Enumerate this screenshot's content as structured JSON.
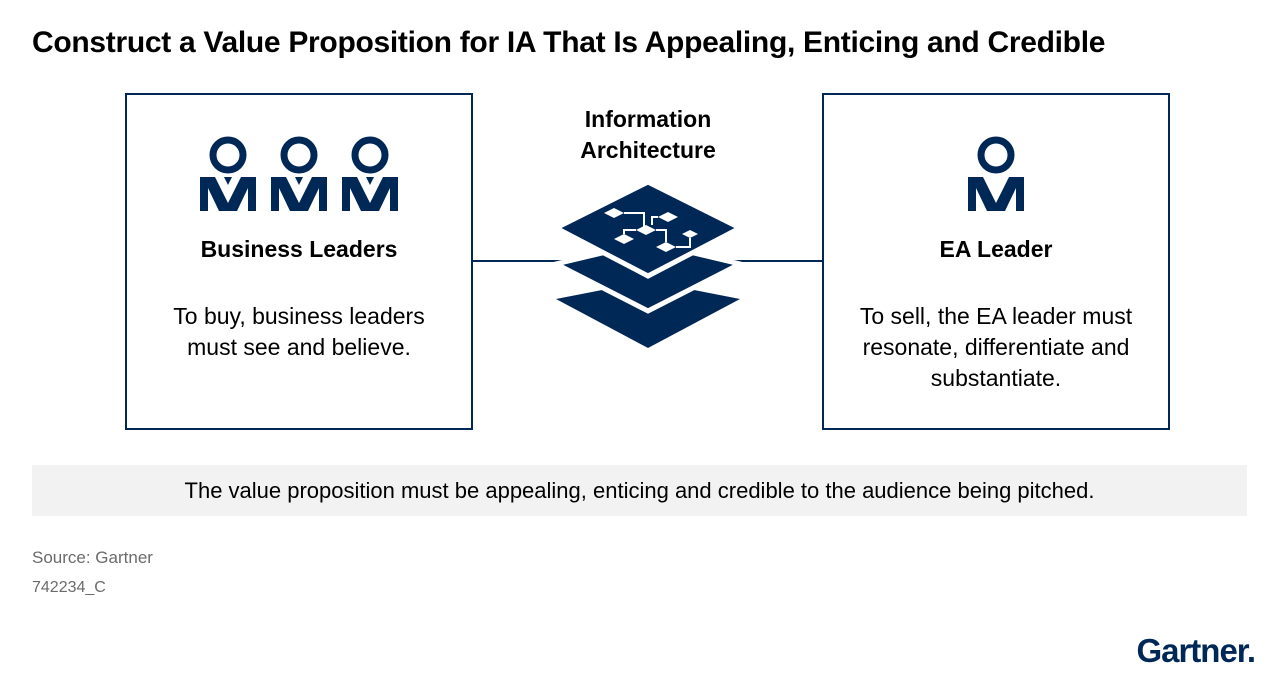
{
  "title": "Construct a Value Proposition for IA That Is Appealing, Enticing and Credible",
  "left_box": {
    "heading": "Business Leaders",
    "body": "To buy, business leaders must see and believe.",
    "icon": "people-group-icon"
  },
  "center": {
    "label_line1": "Information",
    "label_line2": "Architecture",
    "icon": "layered-architecture-icon"
  },
  "right_box": {
    "heading": "EA Leader",
    "body": "To sell, the EA leader must resonate, differentiate and substantiate.",
    "icon": "person-icon"
  },
  "banner": "The value proposition must be appealing, enticing and credible to the audience being pitched.",
  "source": "Source: Gartner",
  "doc_id": "742234_C",
  "logo": "Gartner",
  "colors": {
    "navy": "#002856",
    "banner_bg": "#f2f2f2",
    "muted": "#6b6b6b"
  }
}
